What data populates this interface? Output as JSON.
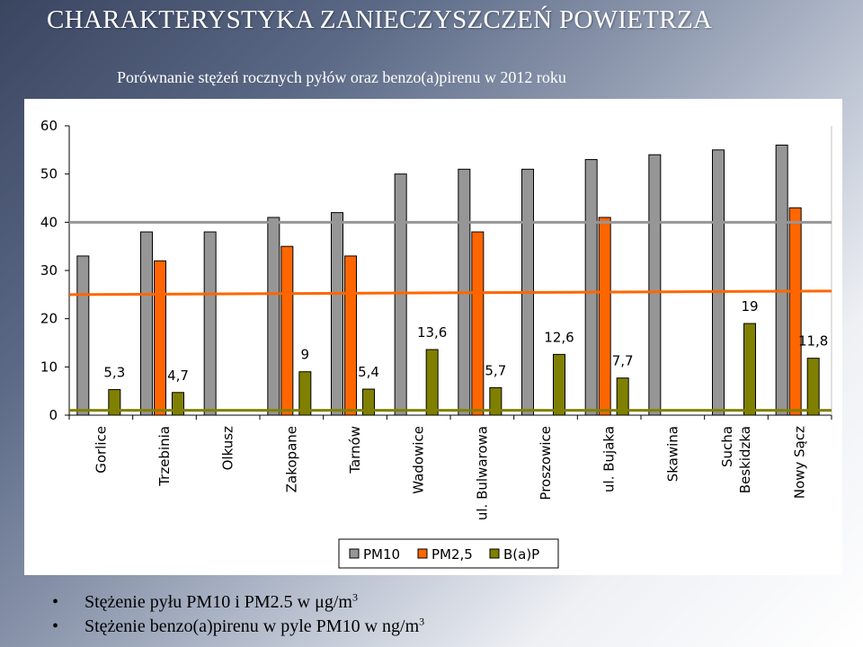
{
  "slide": {
    "title": "CHARAKTERYSTYKA  ZANIECZYSZCZEŃ  POWIETRZA",
    "subtitle": "Porównanie stężeń rocznych pyłów oraz benzo(a)pirenu w 2012 roku",
    "bullets": [
      {
        "text": "Stężenie pyłu PM10 i PM2.5 w μg/m",
        "sup": "3"
      },
      {
        "text": "Stężenie benzo(a)pirenu w pyle PM10 w ng/m",
        "sup": "3"
      }
    ]
  },
  "chart_data": {
    "type": "bar",
    "categories": [
      "Gorlice",
      "Trzebinia",
      "Olkusz",
      "Zakopane",
      "Tarnów",
      "Wadowice",
      "ul. Bulwarowa",
      "Proszowice",
      "ul. Bujaka",
      "Skawina",
      "Sucha Beskidzka",
      "Nowy Sącz"
    ],
    "series": [
      {
        "name": "PM10",
        "color": "#969696",
        "values": [
          33,
          38,
          38,
          41,
          42,
          50,
          51,
          51,
          53,
          54,
          55,
          56
        ]
      },
      {
        "name": "PM2,5",
        "color": "#ff6600",
        "values": [
          null,
          32,
          null,
          35,
          33,
          null,
          38,
          null,
          41,
          null,
          null,
          43
        ]
      },
      {
        "name": "B(a)P",
        "color": "#808000",
        "values": [
          5.3,
          4.7,
          null,
          9,
          5.4,
          13.6,
          5.7,
          12.6,
          7.7,
          null,
          19,
          11.8
        ]
      }
    ],
    "bap_labels": [
      "5,3",
      "4,7",
      "",
      "9",
      "5,4",
      "13,6",
      "5,7",
      "12,6",
      "7,7",
      "",
      "19",
      "11,8"
    ],
    "reference_lines": [
      {
        "value": 40,
        "color": "#969696"
      },
      {
        "value": 25,
        "color": "#ff6600"
      },
      {
        "value": 1,
        "color": "#808000"
      }
    ],
    "yticks": [
      "0",
      "10",
      "20",
      "30",
      "40",
      "50",
      "60"
    ],
    "ylim": [
      0,
      60
    ],
    "grid": false,
    "legend_position": "bottom"
  }
}
